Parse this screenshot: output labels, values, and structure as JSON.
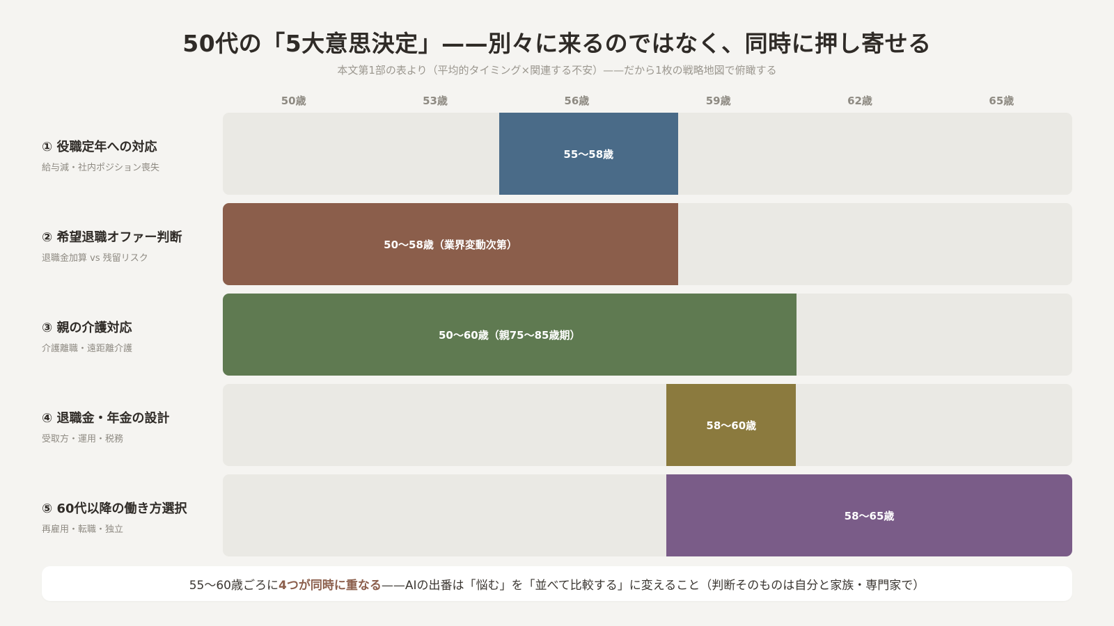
{
  "title": "50代の「5大意思決定」——別々に来るのではなく、同時に押し寄せる",
  "subtitle": "本文第1部の表より（平均的タイミング×関連する不安）——だから1枚の戦略地図で俯瞰する",
  "footer": {
    "prefix": "55〜60歳ごろに",
    "highlight": "4つが同時に重なる",
    "suffix": "——AIの出番は「悩む」を「並べて比較する」に変えること（判断そのものは自分と家族・専門家で）",
    "highlight_color": "#8b5e4b"
  },
  "chart_data": {
    "type": "bar",
    "orientation": "horizontal-range",
    "x_ticks": [
      "50歳",
      "53歳",
      "56歳",
      "59歳",
      "62歳",
      "65歳"
    ],
    "x_tick_values": [
      50,
      53,
      56,
      59,
      62,
      65
    ],
    "xlim": [
      48.5,
      66.5
    ],
    "rows": [
      {
        "label": "① 役職定年への対応",
        "sub": "給与減・社内ポジション喪失",
        "start": 54.35,
        "end": 58.15,
        "bar_label": "55〜58歳",
        "color": "#4a6b88"
      },
      {
        "label": "② 希望退職オファー判断",
        "sub": "退職金加算 vs 残留リスク",
        "start": 48.5,
        "end": 58.15,
        "bar_label": "50〜58歳（業界変動次第）",
        "color": "#8b5e4b"
      },
      {
        "label": "③ 親の介護対応",
        "sub": "介護離職・遠距離介護",
        "start": 48.5,
        "end": 60.65,
        "bar_label": "50〜60歳（親75〜85歳期）",
        "color": "#5f7a51"
      },
      {
        "label": "④ 退職金・年金の設計",
        "sub": "受取方・運用・税務",
        "start": 57.9,
        "end": 60.65,
        "bar_label": "58〜60歳",
        "color": "#8b7a3e"
      },
      {
        "label": "⑤ 60代以降の働き方選択",
        "sub": "再雇用・転職・独立",
        "start": 57.9,
        "end": 66.5,
        "bar_label": "58〜65歳",
        "color": "#7a5c88"
      }
    ]
  }
}
